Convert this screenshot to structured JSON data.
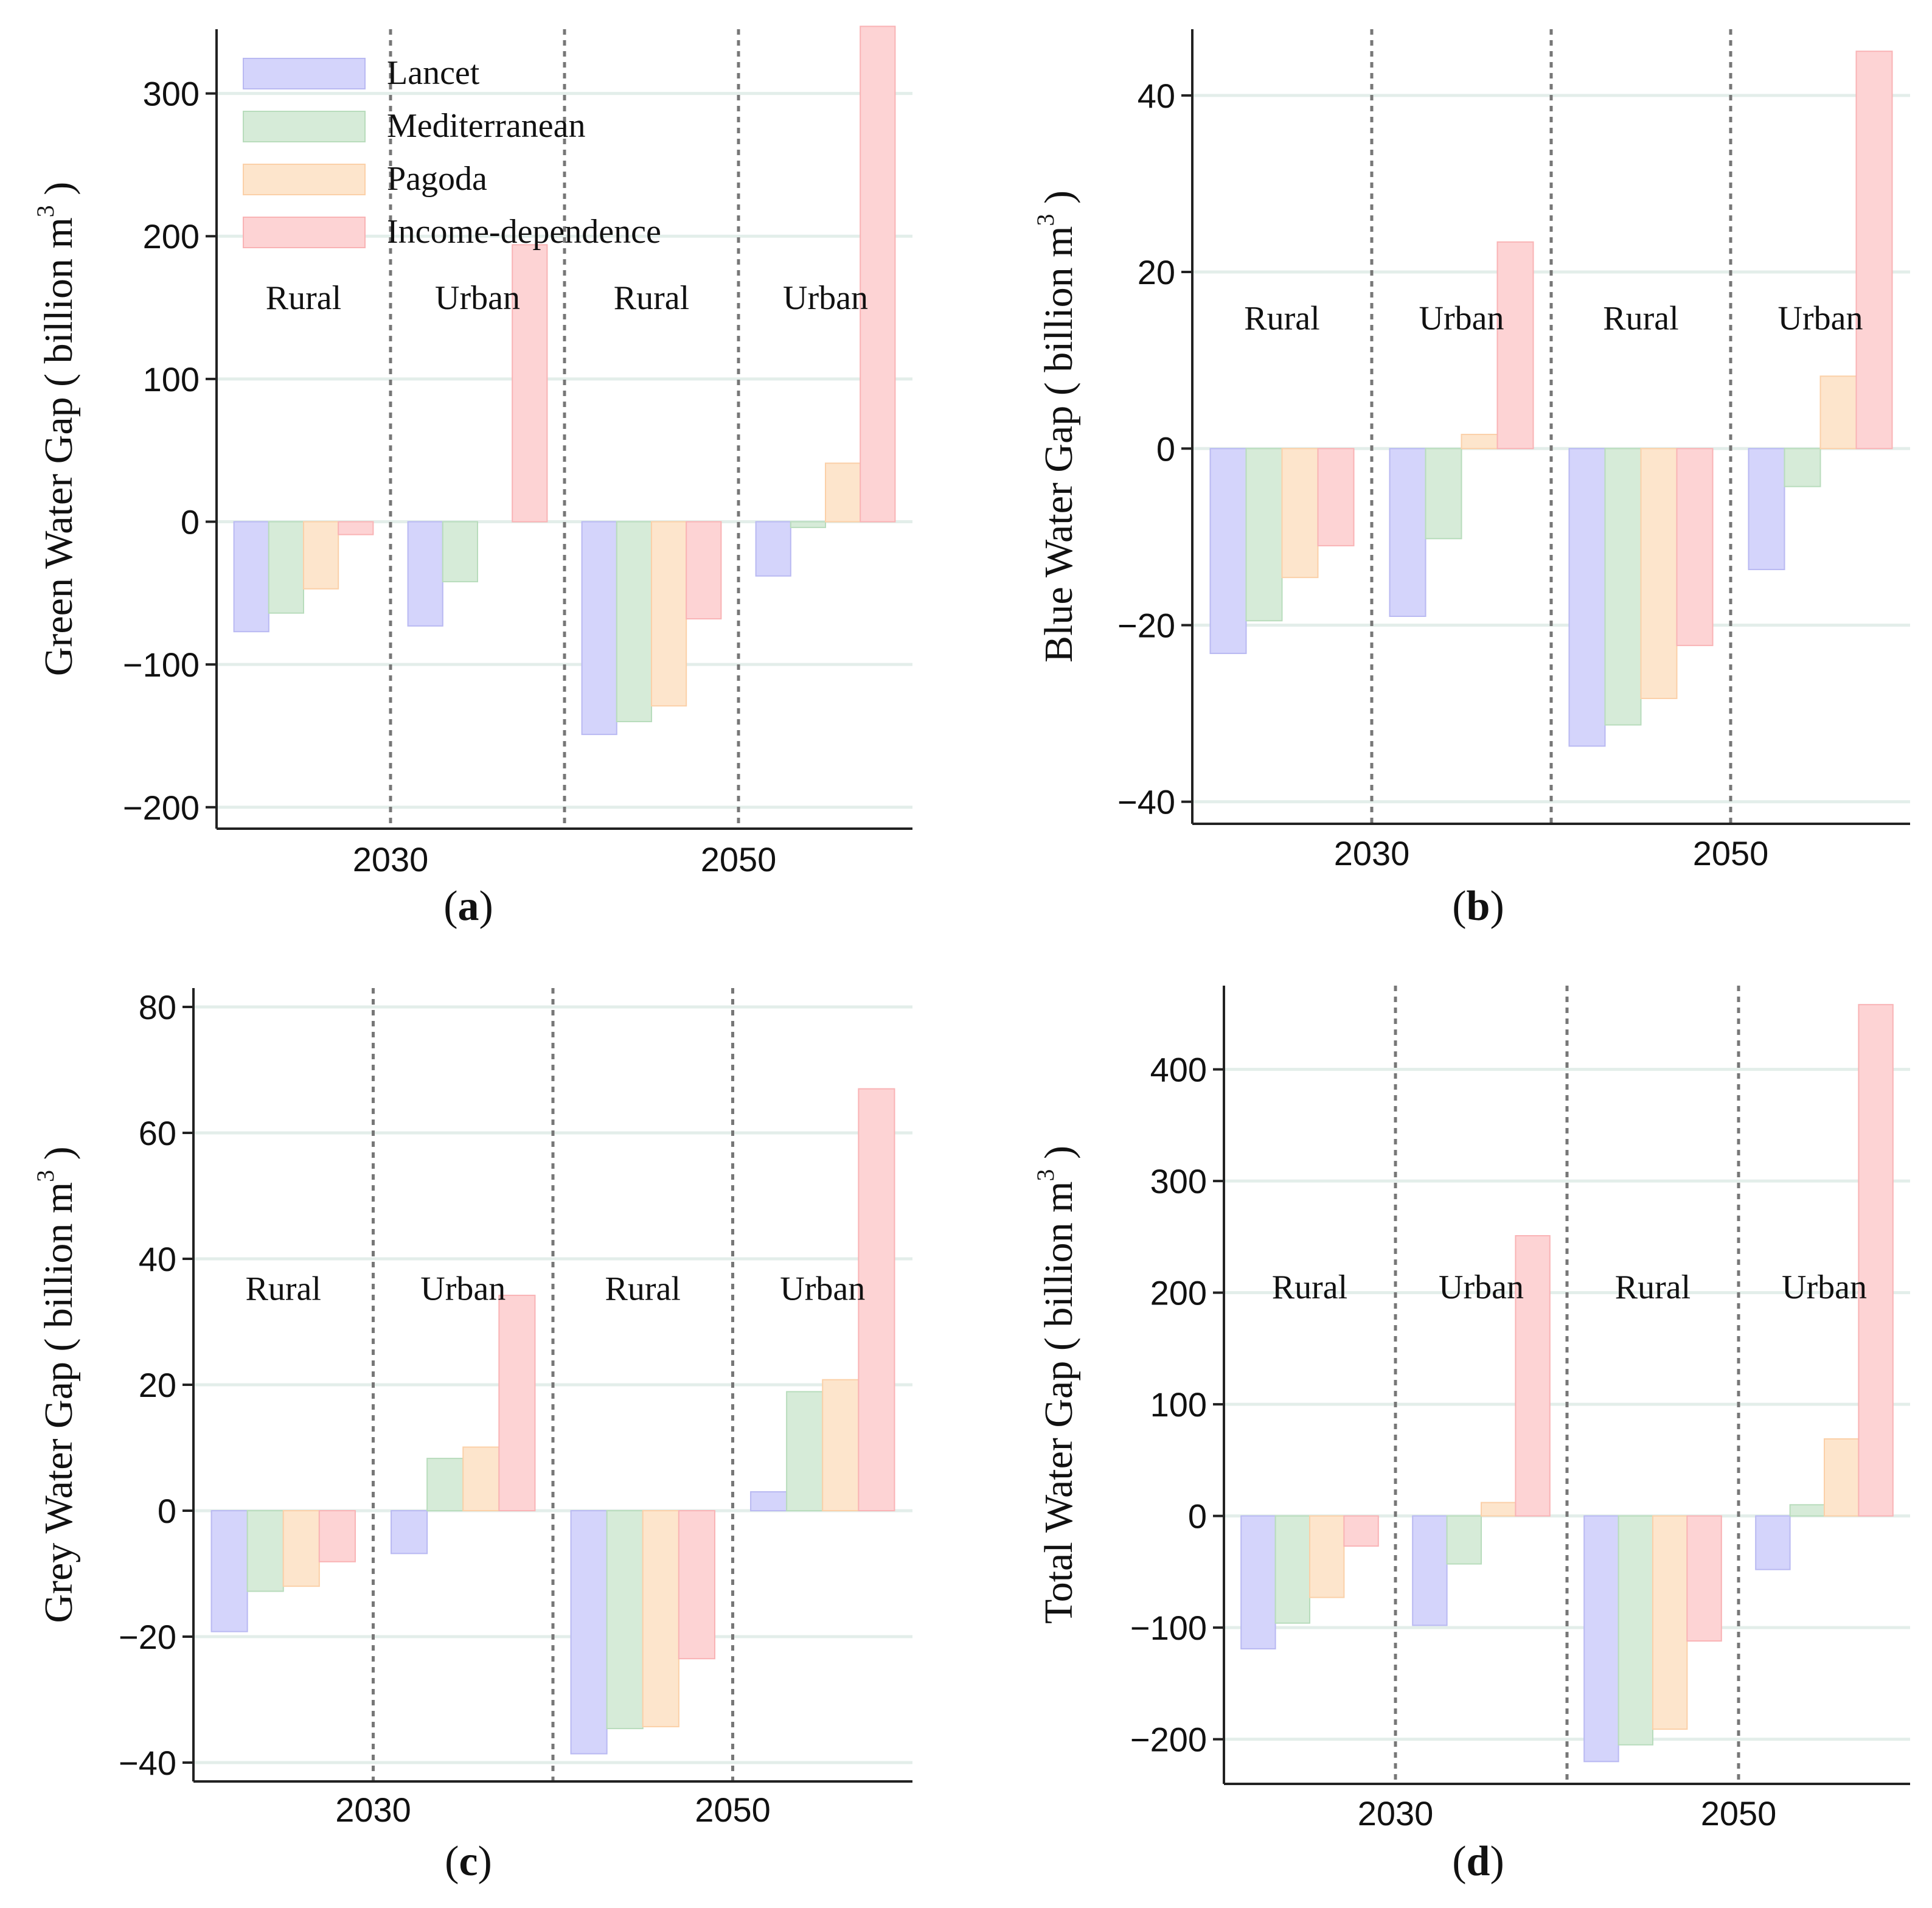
{
  "colors": {
    "Lancet": "#d4d4fb",
    "Mediterranean": "#d6ebd8",
    "Pagoda": "#fde5cc",
    "Income-dependence": "#fdd3d4",
    "bar_edge_Lancet": "#b9b9f2",
    "bar_edge_Mediterranean": "#b8dcbc",
    "bar_edge_Pagoda": "#fbd0a8",
    "bar_edge_Income-dependence": "#f9b3b5",
    "grid": "#e3eeea",
    "divider": "#777777",
    "axis": "#222222"
  },
  "legend": {
    "items": [
      "Lancet",
      "Mediterranean",
      "Pagoda",
      "Income-dependence"
    ]
  },
  "chart_data": [
    {
      "type": "bar",
      "panel": "(a)",
      "panel_letter": "a",
      "ylabel_main": "Green Water Gap ( billion m",
      "ylabel_sup": "3",
      "ylabel_end": " )",
      "ylim": [
        -215,
        345
      ],
      "yticks": [
        -200,
        -100,
        0,
        100,
        200,
        300
      ],
      "show_legend": true,
      "years": [
        "2030",
        "2050"
      ],
      "groups": [
        "Rural",
        "Urban",
        "Rural",
        "Urban"
      ],
      "group_label_value": 149,
      "series": [
        {
          "name": "Lancet",
          "values": [
            -77,
            -73,
            -149,
            -38
          ]
        },
        {
          "name": "Mediterranean",
          "values": [
            -64,
            -42,
            -140,
            -4
          ]
        },
        {
          "name": "Pagoda",
          "values": [
            -47,
            0,
            -129,
            41
          ]
        },
        {
          "name": "Income-dependence",
          "values": [
            -9,
            194,
            -68,
            347
          ]
        }
      ]
    },
    {
      "type": "bar",
      "panel": "(b)",
      "panel_letter": "b",
      "ylabel_main": "Blue Water Gap ( billion m",
      "ylabel_sup": "3",
      "ylabel_end": " )",
      "ylim": [
        -42.5,
        47.5
      ],
      "yticks": [
        -40,
        -20,
        0,
        20,
        40
      ],
      "show_legend": false,
      "years": [
        "2030",
        "2050"
      ],
      "groups": [
        "Rural",
        "Urban",
        "Rural",
        "Urban"
      ],
      "group_label_value": 13.5,
      "series": [
        {
          "name": "Lancet",
          "values": [
            -23.2,
            -19.0,
            -33.7,
            -13.7
          ]
        },
        {
          "name": "Mediterranean",
          "values": [
            -19.5,
            -10.2,
            -31.3,
            -4.3
          ]
        },
        {
          "name": "Pagoda",
          "values": [
            -14.6,
            1.6,
            -28.3,
            8.2
          ]
        },
        {
          "name": "Income-dependence",
          "values": [
            -11.0,
            23.4,
            -22.3,
            45.0
          ]
        }
      ]
    },
    {
      "type": "bar",
      "panel": "(c)",
      "panel_letter": "c",
      "ylabel_main": "Grey Water Gap ( billion m",
      "ylabel_sup": "3",
      "ylabel_end": " )",
      "ylim": [
        -43,
        83
      ],
      "yticks": [
        -40,
        -20,
        0,
        20,
        40,
        60,
        80
      ],
      "show_legend": false,
      "years": [
        "2030",
        "2050"
      ],
      "groups": [
        "Rural",
        "Urban",
        "Rural",
        "Urban"
      ],
      "group_label_value": 33.5,
      "series": [
        {
          "name": "Lancet",
          "values": [
            -19.2,
            -6.8,
            -38.6,
            3.0
          ]
        },
        {
          "name": "Mediterranean",
          "values": [
            -12.8,
            8.3,
            -34.6,
            18.9
          ]
        },
        {
          "name": "Pagoda",
          "values": [
            -12.0,
            10.1,
            -34.3,
            20.8
          ]
        },
        {
          "name": "Income-dependence",
          "values": [
            -8.1,
            34.2,
            -23.5,
            67.0
          ]
        }
      ]
    },
    {
      "type": "bar",
      "panel": "(d)",
      "panel_letter": "d",
      "ylabel_main": "Total Water Gap ( billion m",
      "ylabel_sup": "3",
      "ylabel_end": " )",
      "ylim": [
        -240,
        475
      ],
      "yticks": [
        -200,
        -100,
        0,
        100,
        200,
        300,
        400
      ],
      "show_legend": false,
      "years": [
        "2030",
        "2050"
      ],
      "groups": [
        "Rural",
        "Urban",
        "Rural",
        "Urban"
      ],
      "group_label_value": 195,
      "series": [
        {
          "name": "Lancet",
          "values": [
            -119,
            -98,
            -220,
            -48
          ]
        },
        {
          "name": "Mediterranean",
          "values": [
            -96,
            -43,
            -205,
            10
          ]
        },
        {
          "name": "Pagoda",
          "values": [
            -73,
            12,
            -191,
            69
          ]
        },
        {
          "name": "Income-dependence",
          "values": [
            -27,
            251,
            -112,
            458
          ]
        }
      ]
    }
  ]
}
